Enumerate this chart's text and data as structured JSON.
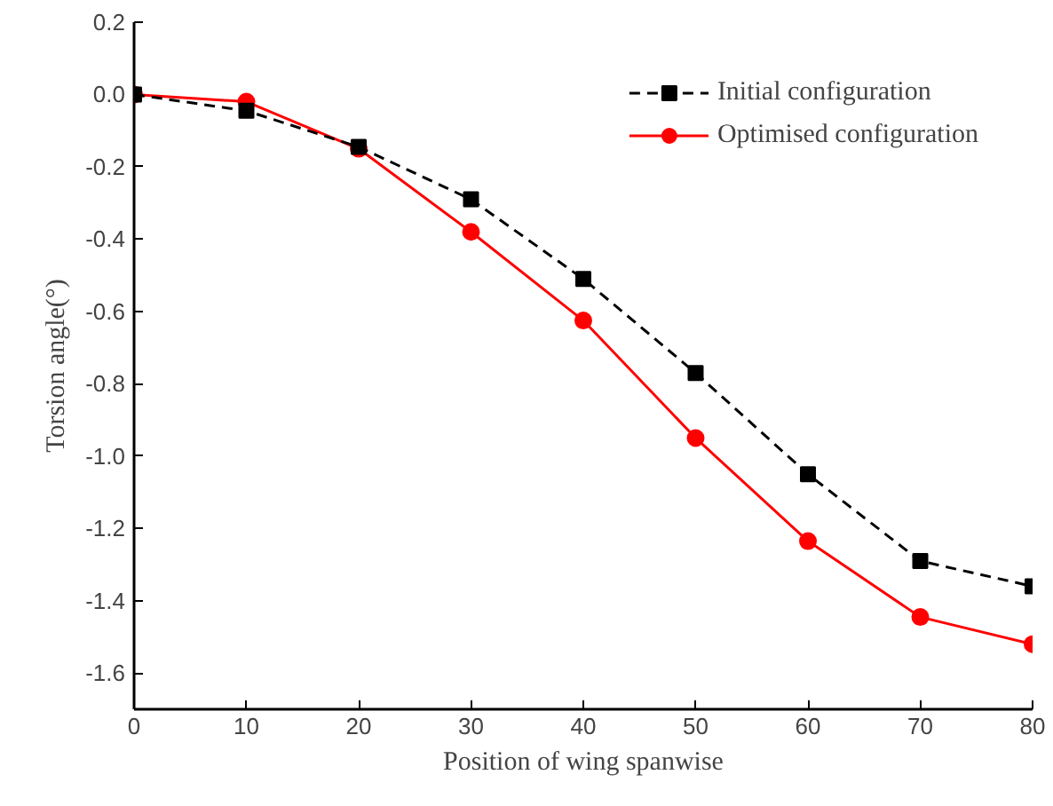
{
  "chart_data": {
    "type": "line",
    "xlabel": "Position of wing spanwise",
    "ylabel": "Torsion angle(°)",
    "x": [
      0,
      10,
      20,
      30,
      40,
      50,
      60,
      70,
      80
    ],
    "series": [
      {
        "name": "Initial configuration",
        "color": "#000000",
        "marker": "square",
        "line_style": "dashed",
        "values": [
          0.0,
          -0.045,
          -0.145,
          -0.29,
          -0.51,
          -0.77,
          -1.05,
          -1.29,
          -1.36
        ]
      },
      {
        "name": "Optimised configuration",
        "color": "#ff0000",
        "marker": "circle",
        "line_style": "solid",
        "values": [
          0.0,
          -0.02,
          -0.15,
          -0.38,
          -0.625,
          -0.95,
          -1.235,
          -1.445,
          -1.52
        ]
      }
    ],
    "xlim": [
      0,
      80
    ],
    "ylim": [
      -1.7,
      0.2
    ],
    "xticks": [
      0,
      10,
      20,
      30,
      40,
      50,
      60,
      70,
      80
    ],
    "yticks": [
      {
        "value": 0.2,
        "label": "0.2"
      },
      {
        "value": 0.0,
        "label": "0.0"
      },
      {
        "value": -0.2,
        "label": "-0.2"
      },
      {
        "value": -0.4,
        "label": "-0.4"
      },
      {
        "value": -0.6,
        "label": "-0.6"
      },
      {
        "value": -0.8,
        "label": "-0.8"
      },
      {
        "value": -1.0,
        "label": "-1.0"
      },
      {
        "value": -1.2,
        "label": "-1.2"
      },
      {
        "value": -1.4,
        "label": "-1.4"
      },
      {
        "value": -1.6,
        "label": "-1.6"
      }
    ],
    "grid": false,
    "legend": "top right"
  }
}
